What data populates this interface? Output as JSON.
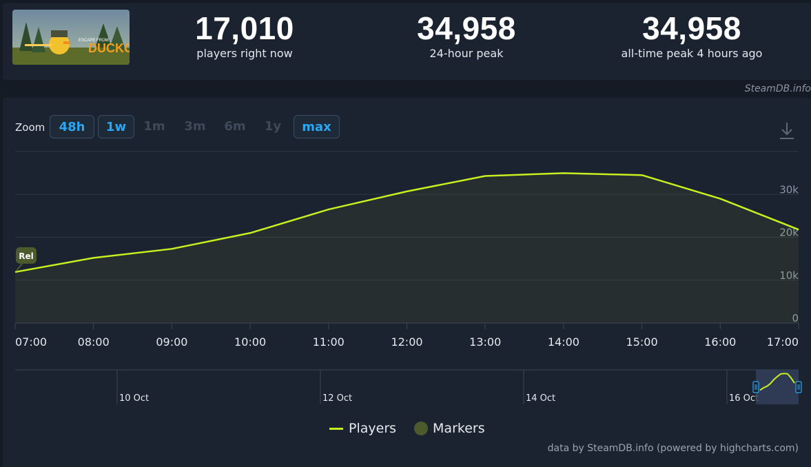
{
  "game": {
    "logo_text": "DUCKOV",
    "logo_small": "ESCAPE FROM"
  },
  "stats": [
    {
      "value": "17,010",
      "label": "players right now"
    },
    {
      "value": "34,958",
      "label": "24-hour peak"
    },
    {
      "value": "34,958",
      "label": "all-time peak 4 hours ago"
    }
  ],
  "site_credit": "SteamDB.info",
  "zoom": {
    "label": "Zoom",
    "buttons": [
      {
        "label": "48h",
        "active": true
      },
      {
        "label": "1w",
        "active": true
      },
      {
        "label": "1m",
        "active": false
      },
      {
        "label": "3m",
        "active": false
      },
      {
        "label": "6m",
        "active": false
      },
      {
        "label": "1y",
        "active": false
      },
      {
        "label": "max",
        "active": true
      }
    ]
  },
  "chart_data": {
    "type": "area",
    "x": [
      "07:00",
      "08:00",
      "09:00",
      "10:00",
      "11:00",
      "12:00",
      "13:00",
      "14:00",
      "15:00",
      "16:00",
      "17:00"
    ],
    "series": [
      {
        "name": "Players",
        "color": "#c8ef1f",
        "values": [
          11900,
          15200,
          17300,
          21000,
          26500,
          30700,
          34300,
          34958,
          34500,
          29000,
          21800
        ]
      }
    ],
    "y_ticks": [
      "0",
      "10k",
      "20k",
      "30k"
    ],
    "ylim": [
      0,
      40000
    ],
    "annotation": {
      "label": "Rel",
      "x": "07:00"
    },
    "navigator": {
      "labels": [
        "10 Oct",
        "12 Oct",
        "14 Oct",
        "16 Oct"
      ]
    },
    "legend": {
      "players": "Players",
      "markers": "Markers",
      "placement": "bottom-center"
    }
  },
  "footer_credit": "data by SteamDB.info (powered by highcharts.com)"
}
